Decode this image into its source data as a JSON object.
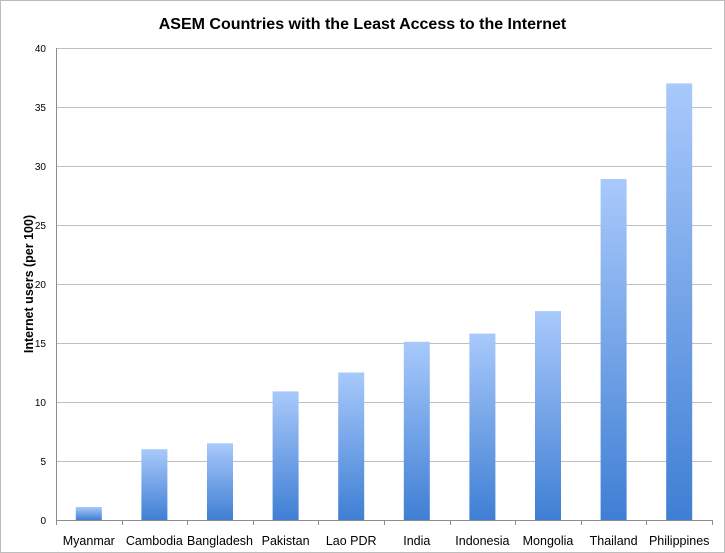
{
  "chart_data": {
    "type": "bar",
    "title": "ASEM Countries with the Least Access to the Internet",
    "xlabel": "",
    "ylabel": "Internet users (per 100)",
    "categories": [
      "Myanmar",
      "Cambodia",
      "Bangladesh",
      "Pakistan",
      "Lao PDR",
      "India",
      "Indonesia",
      "Mongolia",
      "Thailand",
      "Philippines"
    ],
    "values": [
      1.1,
      6.0,
      6.5,
      10.9,
      12.5,
      15.1,
      15.8,
      17.7,
      28.9,
      37.0
    ],
    "ylim": [
      0,
      40
    ],
    "yticks": [
      "0",
      "5",
      "10",
      "15",
      "20",
      "25",
      "30",
      "35",
      "40"
    ],
    "grid": true,
    "legend": "none",
    "colors": {
      "bar_top": "#a9c9fb",
      "bar_bottom": "#3f7fd4",
      "grid": "#bfbfbf",
      "axis": "#8c8c8c"
    }
  }
}
